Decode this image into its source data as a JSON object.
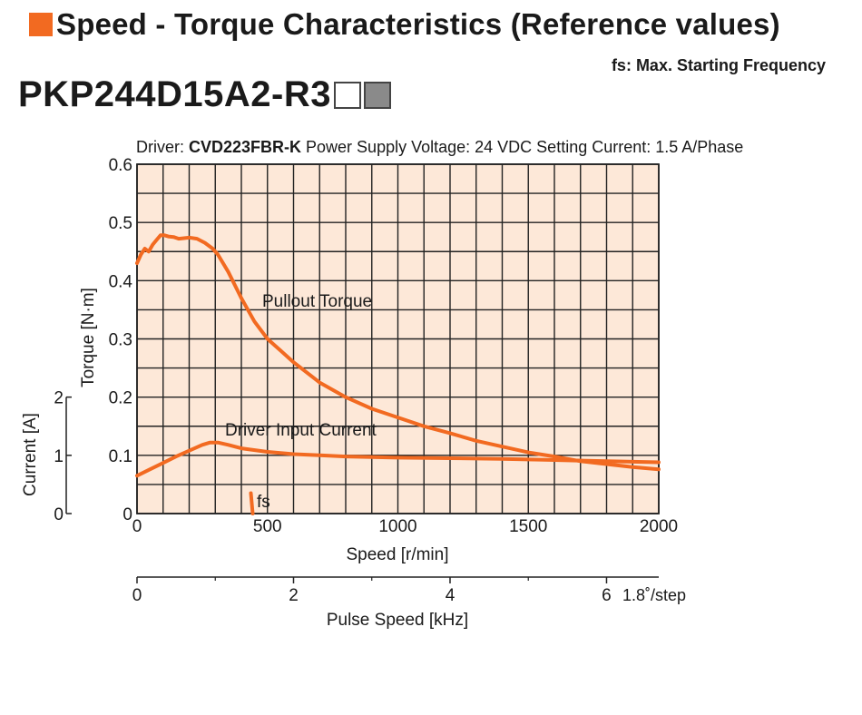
{
  "header": {
    "title": "Speed - Torque Characteristics (Reference values)",
    "accent_color": "#f26a21"
  },
  "fs_note": "fs: Max. Starting Frequency",
  "model": {
    "name": "PKP244D15A2-R3",
    "box_colors": [
      "#ffffff",
      "#8a8a8a"
    ]
  },
  "conditions": {
    "driver_label": "Driver: ",
    "driver_value": "CVD223FBR-K",
    "rest": " Power Supply Voltage: 24 VDC  Setting Current: 1.5 A/Phase"
  },
  "chart_data": {
    "type": "line",
    "plot_background": "#fde8d8",
    "line_color": "#f26a21",
    "grid": true,
    "x": {
      "label": "Speed [r/min]",
      "range": [
        0,
        2000
      ],
      "ticks": [
        0,
        500,
        1000,
        1500,
        2000
      ],
      "minor_step": 100
    },
    "y_torque": {
      "label": "Torque [N·m]",
      "range": [
        0,
        0.6
      ],
      "ticks": [
        0,
        0.1,
        0.2,
        0.3,
        0.4,
        0.5,
        0.6
      ],
      "tick_labels": [
        "0",
        "0.1",
        "0.2",
        "0.3",
        "0.4",
        "0.5",
        "0.6"
      ]
    },
    "y_current": {
      "label": "Current [A]",
      "range": [
        0,
        2
      ],
      "ticks": [
        0,
        1,
        2
      ]
    },
    "x2": {
      "label": "Pulse Speed [kHz]",
      "range": [
        0,
        6.667
      ],
      "ticks": [
        0,
        2,
        4,
        6
      ],
      "suffix": "1.8˚/step"
    },
    "series": [
      {
        "name": "Pullout Torque",
        "axis": "torque",
        "x": [
          0,
          15,
          30,
          45,
          60,
          75,
          90,
          105,
          120,
          140,
          160,
          180,
          200,
          230,
          260,
          290,
          310,
          350,
          400,
          450,
          500,
          550,
          600,
          700,
          800,
          900,
          1000,
          1100,
          1200,
          1300,
          1400,
          1500,
          1600,
          1700,
          1800,
          1900,
          2000
        ],
        "y": [
          0.43,
          0.445,
          0.455,
          0.45,
          0.462,
          0.47,
          0.478,
          0.478,
          0.476,
          0.475,
          0.472,
          0.473,
          0.474,
          0.472,
          0.465,
          0.455,
          0.445,
          0.415,
          0.37,
          0.33,
          0.3,
          0.28,
          0.26,
          0.225,
          0.2,
          0.18,
          0.165,
          0.15,
          0.138,
          0.125,
          0.115,
          0.105,
          0.098,
          0.09,
          0.085,
          0.08,
          0.076
        ]
      },
      {
        "name": "Driver Input Current",
        "axis": "current",
        "x": [
          0,
          50,
          100,
          150,
          200,
          250,
          280,
          310,
          350,
          400,
          500,
          600,
          700,
          800,
          1000,
          1200,
          1400,
          1600,
          1800,
          2000
        ],
        "y": [
          0.65,
          0.76,
          0.87,
          0.98,
          1.08,
          1.18,
          1.22,
          1.22,
          1.18,
          1.12,
          1.06,
          1.02,
          1.0,
          0.98,
          0.96,
          0.95,
          0.94,
          0.92,
          0.9,
          0.88
        ]
      }
    ],
    "fs_marker": {
      "label": "fs",
      "x": 440,
      "torque_range": [
        0.0,
        0.035
      ]
    }
  }
}
